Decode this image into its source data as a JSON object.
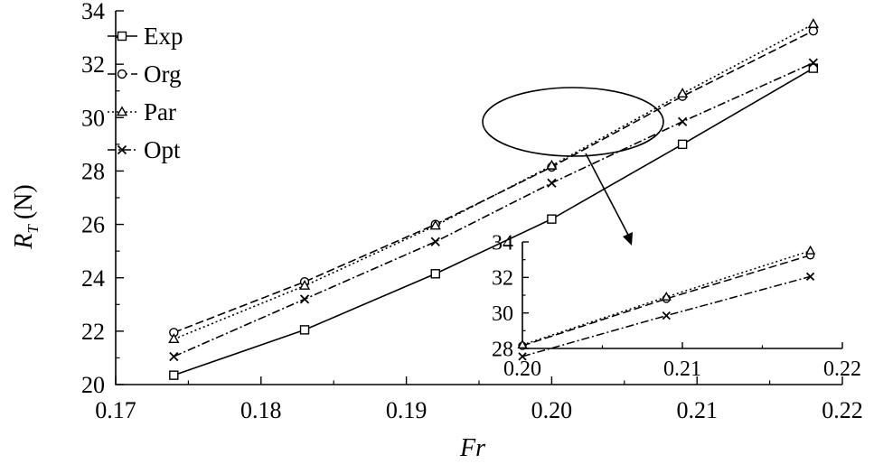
{
  "chart_data": [
    {
      "type": "line",
      "xlabel": "Fr",
      "ylabel_main": "R",
      "ylabel_sub": "T",
      "ylabel_unit": "(N)",
      "xlim": [
        0.17,
        0.22
      ],
      "ylim": [
        20,
        34
      ],
      "xticks": [
        "0.17",
        "0.18",
        "0.19",
        "0.20",
        "0.21",
        "0.22"
      ],
      "yticks": [
        "20",
        "22",
        "24",
        "26",
        "28",
        "30",
        "32",
        "34"
      ],
      "x": [
        0.174,
        0.183,
        0.192,
        0.2,
        0.209,
        0.218
      ],
      "series": [
        {
          "name": "Exp",
          "marker": "square",
          "dash": "solid",
          "values": [
            20.35,
            22.05,
            24.15,
            26.2,
            29.0,
            31.85
          ]
        },
        {
          "name": "Org",
          "marker": "circle",
          "dash": "dashed",
          "values": [
            21.95,
            23.85,
            26.0,
            28.15,
            30.8,
            33.25
          ]
        },
        {
          "name": "Par",
          "marker": "triangle",
          "dash": "dotted",
          "values": [
            21.7,
            23.7,
            25.95,
            28.2,
            30.9,
            33.5
          ]
        },
        {
          "name": "Opt",
          "marker": "cross",
          "dash": "dashdot",
          "values": [
            21.05,
            23.2,
            25.35,
            27.55,
            29.85,
            32.05
          ]
        }
      ],
      "legend": "top-left",
      "grid": false
    },
    {
      "type": "line",
      "role": "inset",
      "xlim": [
        0.2,
        0.22
      ],
      "ylim": [
        28,
        34
      ],
      "xticks": [
        "0.20",
        "0.21",
        "0.22"
      ],
      "yticks": [
        "28",
        "30",
        "32",
        "34"
      ],
      "x": [
        0.2,
        0.209,
        0.218
      ],
      "series": [
        {
          "name": "Org",
          "marker": "circle",
          "dash": "dashed",
          "values": [
            28.15,
            30.8,
            33.25
          ]
        },
        {
          "name": "Par",
          "marker": "triangle",
          "dash": "dotted",
          "values": [
            28.2,
            30.9,
            33.5
          ]
        },
        {
          "name": "Opt",
          "marker": "cross",
          "dash": "dashdot",
          "values": [
            27.55,
            29.85,
            32.05
          ]
        }
      ],
      "grid": false
    }
  ]
}
